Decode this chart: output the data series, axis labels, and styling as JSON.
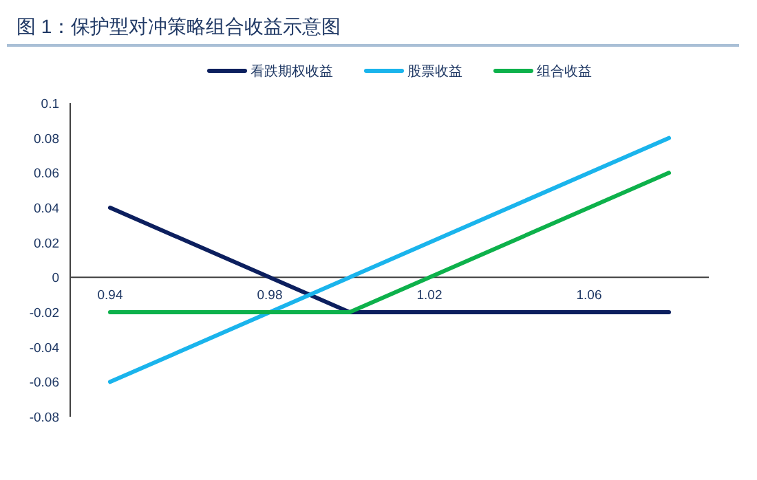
{
  "chart_data": {
    "type": "line",
    "title": "图 1：保护型对冲策略组合收益示意图",
    "series": [
      {
        "name": "看跌期权收益",
        "color": "#0c1f5e",
        "x": [
          0.94,
          1.0,
          1.08
        ],
        "values": [
          0.04,
          -0.02,
          -0.02
        ]
      },
      {
        "name": "股票收益",
        "color": "#1ab4ec",
        "x": [
          0.94,
          1.08
        ],
        "values": [
          -0.06,
          0.08
        ]
      },
      {
        "name": "组合收益",
        "color": "#0db14b",
        "x": [
          0.94,
          1.0,
          1.08
        ],
        "values": [
          -0.02,
          -0.02,
          0.06
        ]
      }
    ],
    "xlim": [
      0.93,
      1.09
    ],
    "xticks": [
      0.94,
      0.98,
      1.02,
      1.06
    ],
    "ylim": [
      -0.08,
      0.1
    ],
    "yticks": [
      -0.08,
      -0.06,
      -0.04,
      -0.02,
      0,
      0.02,
      0.04,
      0.06,
      0.08,
      0.1
    ],
    "legend": "top"
  }
}
